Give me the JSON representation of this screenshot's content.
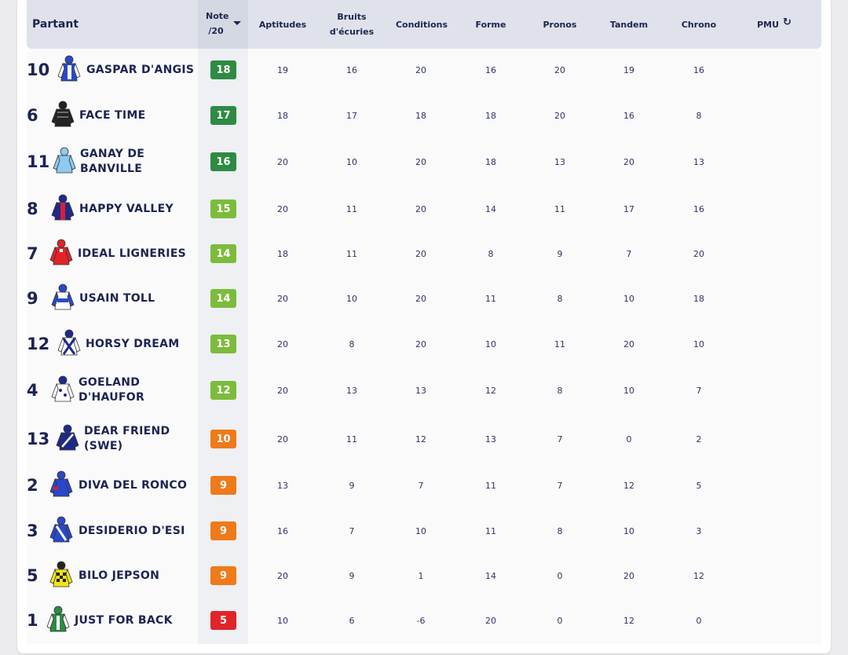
{
  "headers": {
    "partant": "Partant",
    "note_line1": "Note",
    "note_line2": "/20",
    "aptitudes": "Aptitudes",
    "bruits_line1": "Bruits",
    "bruits_line2": "d'écuries",
    "conditions": "Conditions",
    "forme": "Forme",
    "pronos": "Pronos",
    "tandem": "Tandem",
    "chrono": "Chrono",
    "pmu": "PMU"
  },
  "colors": {
    "dark_green": "#2e8b43",
    "green": "#7dbb3c",
    "orange": "#ef7a1a",
    "red": "#e0242a"
  },
  "rows": [
    {
      "num": "10",
      "name": "GASPAR D'ANGIS",
      "note": "18",
      "note_color": "#2e8b43",
      "silk": "blue-white",
      "values": [
        "19",
        "16",
        "20",
        "16",
        "20",
        "19",
        "16"
      ]
    },
    {
      "num": "6",
      "name": "FACE TIME",
      "note": "17",
      "note_color": "#2e8b43",
      "silk": "black",
      "values": [
        "18",
        "17",
        "18",
        "18",
        "20",
        "16",
        "8"
      ]
    },
    {
      "num": "11",
      "name": "GANAY DE BANVILLE",
      "note": "16",
      "note_color": "#2e8b43",
      "silk": "light-blue",
      "values": [
        "20",
        "10",
        "20",
        "18",
        "13",
        "20",
        "13"
      ]
    },
    {
      "num": "8",
      "name": "HAPPY VALLEY",
      "note": "15",
      "note_color": "#7dbb3c",
      "silk": "navy-red",
      "values": [
        "20",
        "11",
        "20",
        "14",
        "11",
        "17",
        "16"
      ]
    },
    {
      "num": "7",
      "name": "IDEAL LIGNERIES",
      "note": "14",
      "note_color": "#7dbb3c",
      "silk": "red",
      "values": [
        "18",
        "11",
        "20",
        "8",
        "9",
        "7",
        "20"
      ]
    },
    {
      "num": "9",
      "name": "USAIN TOLL",
      "note": "14",
      "note_color": "#7dbb3c",
      "silk": "white-blue",
      "values": [
        "20",
        "10",
        "20",
        "11",
        "8",
        "10",
        "18"
      ]
    },
    {
      "num": "12",
      "name": "HORSY DREAM",
      "note": "13",
      "note_color": "#7dbb3c",
      "silk": "white-navy-cross",
      "values": [
        "20",
        "8",
        "20",
        "10",
        "11",
        "20",
        "10"
      ]
    },
    {
      "num": "4",
      "name": "GOELAND D'HAUFOR",
      "note": "12",
      "note_color": "#7dbb3c",
      "silk": "white-dots",
      "values": [
        "20",
        "13",
        "13",
        "12",
        "8",
        "10",
        "7"
      ]
    },
    {
      "num": "13",
      "name": "DEAR FRIEND (SWE)",
      "note": "10",
      "note_color": "#ef7a1a",
      "silk": "navy-white",
      "values": [
        "20",
        "11",
        "12",
        "13",
        "7",
        "0",
        "2"
      ]
    },
    {
      "num": "2",
      "name": "DIVA DEL RONCO",
      "note": "9",
      "note_color": "#ef7a1a",
      "silk": "blue-red",
      "values": [
        "13",
        "9",
        "7",
        "11",
        "7",
        "12",
        "5"
      ]
    },
    {
      "num": "3",
      "name": "DESIDERIO D'ESI",
      "note": "9",
      "note_color": "#ef7a1a",
      "silk": "blue-white-sash",
      "values": [
        "16",
        "7",
        "10",
        "11",
        "8",
        "10",
        "3"
      ]
    },
    {
      "num": "5",
      "name": "BILO JEPSON",
      "note": "9",
      "note_color": "#ef7a1a",
      "silk": "yellow-check",
      "values": [
        "20",
        "9",
        "1",
        "14",
        "0",
        "20",
        "12"
      ]
    },
    {
      "num": "1",
      "name": "JUST FOR BACK",
      "note": "5",
      "note_color": "#e0242a",
      "silk": "green-white",
      "values": [
        "10",
        "6",
        "-6",
        "20",
        "0",
        "12",
        "0"
      ]
    }
  ]
}
